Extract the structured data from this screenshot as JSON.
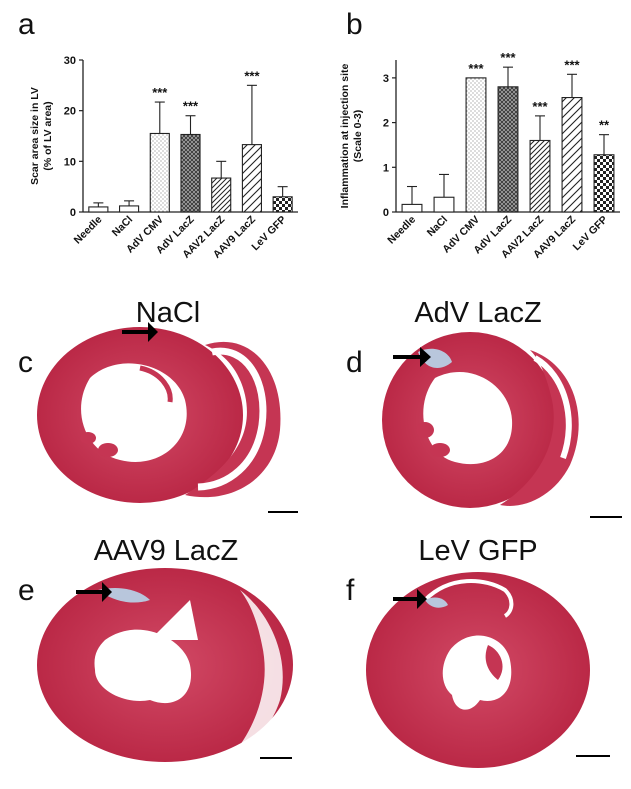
{
  "panel_letters": {
    "a": "a",
    "b": "b",
    "c": "c",
    "d": "d",
    "e": "e",
    "f": "f"
  },
  "micrograph_titles": {
    "c": "NaCl",
    "d": "AdV LacZ",
    "e": "AAV9 LacZ",
    "f": "LeV GFP"
  },
  "colors": {
    "tissue": "#c8304e",
    "tissue_dark": "#b01e3a",
    "fibrosis": "#b8c6dc",
    "axis": "#222222"
  },
  "chart_data": [
    {
      "type": "bar",
      "ylabel": "Scar area size in LV\n(%  of LV area)",
      "ylabel_lines": [
        "Scar area size in LV",
        "(%  of LV area)"
      ],
      "ylim": [
        0,
        30
      ],
      "yticks": [
        "0",
        "10",
        "20",
        "30"
      ],
      "ytick_values": [
        0,
        10,
        20,
        30
      ],
      "categories": [
        "Needle",
        "NaCl",
        "AdV CMV",
        "AdV LacZ",
        "AAV2 LacZ",
        "AAV9 LacZ",
        "LeV GFP"
      ],
      "values": [
        1.0,
        1.2,
        15.5,
        15.3,
        6.7,
        13.3,
        3.0
      ],
      "error_upper": [
        1.8,
        2.2,
        21.7,
        19.0,
        10.0,
        25.0,
        5.0
      ],
      "patterns": [
        "white",
        "white",
        "dots",
        "crosshatch",
        "diag",
        "diag-wide",
        "checker"
      ],
      "significance": [
        "",
        "",
        "***",
        "***",
        "",
        "***",
        ""
      ]
    },
    {
      "type": "bar",
      "ylabel": "Inflammation at injection site\n(Scale 0-3)",
      "ylabel_lines": [
        "Inflammation at injection site",
        "(Scale 0-3)"
      ],
      "ylim": [
        0,
        3.4
      ],
      "yticks": [
        "0",
        "1",
        "2",
        "3"
      ],
      "ytick_values": [
        0,
        1,
        2,
        3
      ],
      "categories": [
        "Needle",
        "NaCl",
        "AdV CMV",
        "AdV LacZ",
        "AAV2 LacZ",
        "AAV9 LacZ",
        "LeV GFP"
      ],
      "values": [
        0.17,
        0.33,
        3.0,
        2.8,
        1.6,
        2.56,
        1.28
      ],
      "error_upper": [
        0.57,
        0.84,
        3.0,
        3.24,
        2.15,
        3.08,
        1.73
      ],
      "patterns": [
        "white",
        "white",
        "dots",
        "crosshatch",
        "diag",
        "diag-wide",
        "checker"
      ],
      "significance": [
        "",
        "",
        "***",
        "***",
        "***",
        "***",
        "**"
      ]
    }
  ]
}
